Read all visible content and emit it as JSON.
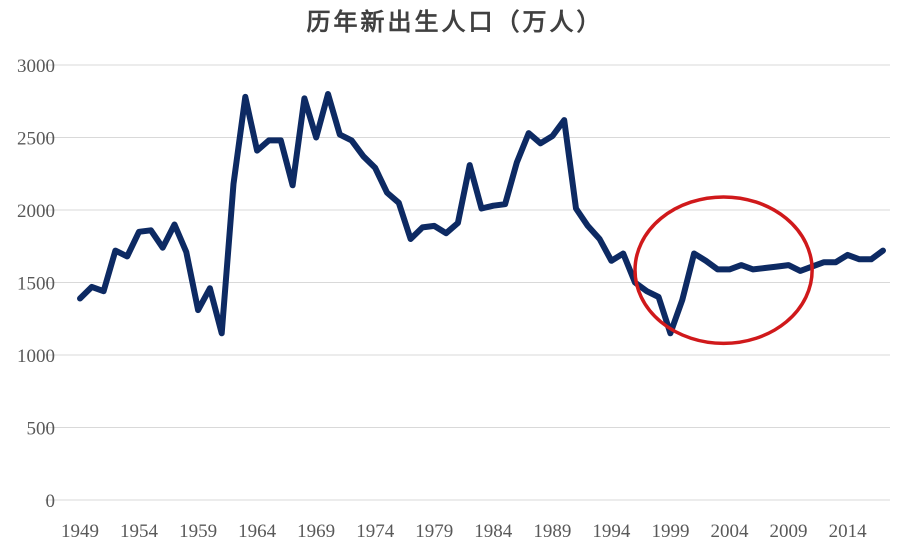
{
  "chart_data": {
    "type": "line",
    "title": "历年新出生人口（万人）",
    "xlabel": "",
    "ylabel": "",
    "ylim": [
      0,
      3000
    ],
    "yticks": [
      0,
      500,
      1000,
      1500,
      2000,
      2500,
      3000
    ],
    "xticks": [
      1949,
      1954,
      1959,
      1964,
      1969,
      1974,
      1979,
      1984,
      1989,
      1994,
      1999,
      2004,
      2009,
      2014
    ],
    "grid": true,
    "line_color": "#0d2a63",
    "annotation": {
      "shape": "ellipse",
      "color": "#d0191b",
      "x_range": [
        1996,
        2011
      ],
      "y_range": [
        1080,
        2090
      ]
    },
    "x": [
      1949,
      1950,
      1951,
      1952,
      1953,
      1954,
      1955,
      1956,
      1957,
      1958,
      1959,
      1960,
      1961,
      1962,
      1963,
      1964,
      1965,
      1966,
      1967,
      1968,
      1969,
      1970,
      1971,
      1972,
      1973,
      1974,
      1975,
      1976,
      1977,
      1978,
      1979,
      1980,
      1981,
      1982,
      1983,
      1984,
      1985,
      1986,
      1987,
      1988,
      1989,
      1990,
      1991,
      1992,
      1993,
      1994,
      1995,
      1996,
      1997,
      1998,
      1999,
      2000,
      2001,
      2002,
      2003,
      2004,
      2005,
      2006,
      2007,
      2008,
      2009,
      2010,
      2011,
      2012,
      2013,
      2014,
      2015,
      2016,
      2017
    ],
    "values": [
      1390,
      1470,
      1440,
      1720,
      1680,
      1850,
      1860,
      1740,
      1900,
      1710,
      1310,
      1460,
      1150,
      2180,
      2780,
      2410,
      2480,
      2480,
      2170,
      2770,
      2500,
      2800,
      2520,
      2480,
      2370,
      2290,
      2120,
      2050,
      1800,
      1880,
      1890,
      1840,
      1910,
      2310,
      2010,
      2030,
      2040,
      2330,
      2530,
      2460,
      2510,
      2620,
      2010,
      1890,
      1800,
      1650,
      1700,
      1500,
      1440,
      1400,
      1150,
      1380,
      1700,
      1650,
      1590,
      1590,
      1620,
      1590,
      1600,
      1610,
      1620,
      1580,
      1610,
      1640,
      1640,
      1690,
      1660,
      1660,
      1720
    ]
  }
}
